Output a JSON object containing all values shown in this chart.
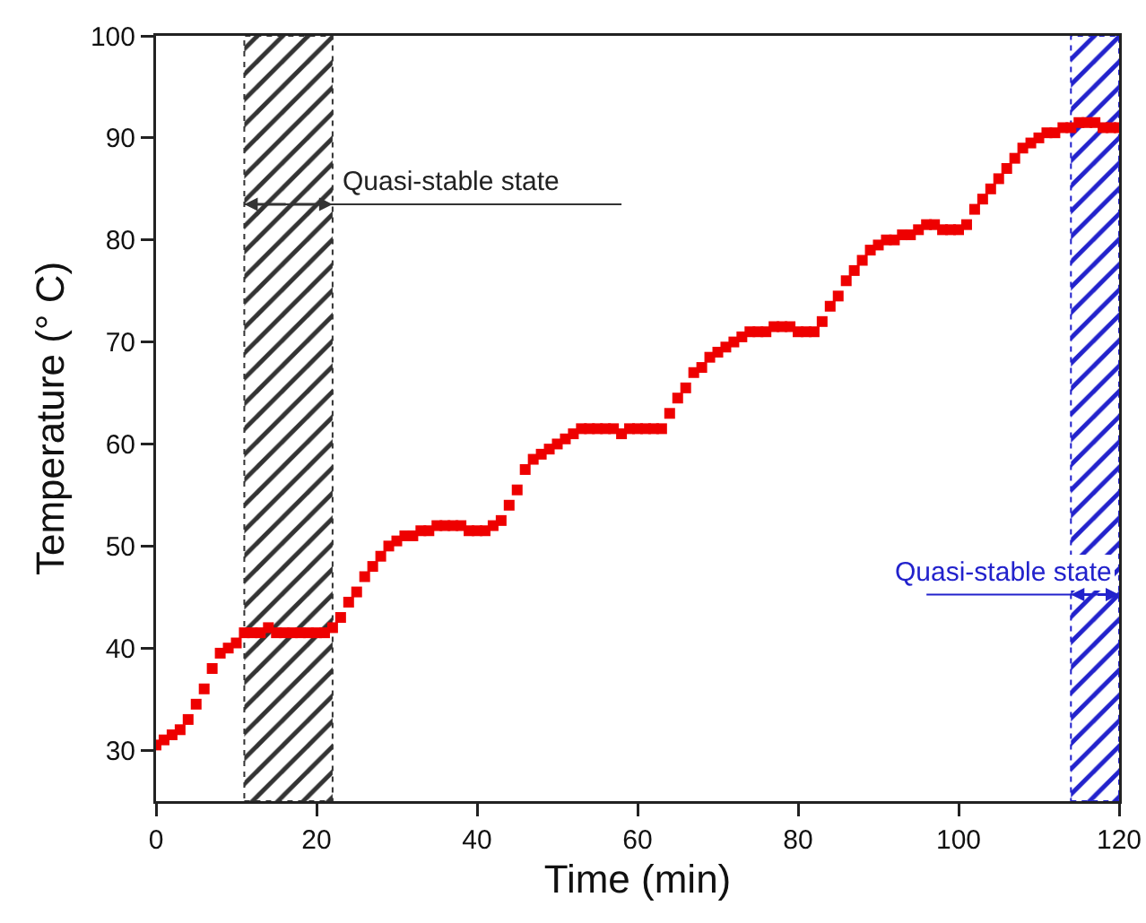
{
  "chart_data": {
    "type": "scatter",
    "xlabel": "Time (min)",
    "ylabel": "Temperature (° C)",
    "xlim": [
      0,
      120
    ],
    "xticks": [
      0,
      20,
      40,
      60,
      80,
      100,
      120
    ],
    "ylim": [
      25,
      100
    ],
    "yticks": [
      30,
      40,
      50,
      60,
      70,
      80,
      90,
      100
    ],
    "grid": false,
    "marker": "square",
    "x": [
      0,
      1,
      2,
      3,
      4,
      5,
      6,
      7,
      8,
      9,
      10,
      11,
      12,
      13,
      14,
      15,
      16,
      17,
      18,
      19,
      20,
      21,
      22,
      23,
      24,
      25,
      26,
      27,
      28,
      29,
      30,
      31,
      32,
      33,
      34,
      35,
      36,
      37,
      38,
      39,
      40,
      41,
      42,
      43,
      44,
      45,
      46,
      47,
      48,
      49,
      50,
      51,
      52,
      53,
      54,
      55,
      56,
      57,
      58,
      59,
      60,
      61,
      62,
      63,
      64,
      65,
      66,
      67,
      68,
      69,
      70,
      71,
      72,
      73,
      74,
      75,
      76,
      77,
      78,
      79,
      80,
      81,
      82,
      83,
      84,
      85,
      86,
      87,
      88,
      89,
      90,
      91,
      92,
      93,
      94,
      95,
      96,
      97,
      98,
      99,
      100,
      101,
      102,
      103,
      104,
      105,
      106,
      107,
      108,
      109,
      110,
      111,
      112,
      113,
      114,
      115,
      116,
      117,
      118,
      119,
      120
    ],
    "series": [
      {
        "color": "#ee0000",
        "values": [
          30.5,
          31,
          31.5,
          32,
          33,
          34.5,
          36,
          38,
          39.5,
          40,
          40.5,
          41.5,
          41.5,
          41.5,
          42,
          41.5,
          41.5,
          41.5,
          41.5,
          41.5,
          41.5,
          41.5,
          42,
          43,
          44.5,
          45.5,
          47,
          48,
          49,
          50,
          50.5,
          51,
          51,
          51.5,
          51.5,
          52,
          52,
          52,
          52,
          51.5,
          51.5,
          51.5,
          52,
          52.5,
          54,
          55.5,
          57.5,
          58.5,
          59,
          59.5,
          60,
          60.5,
          61,
          61.5,
          61.5,
          61.5,
          61.5,
          61.5,
          61,
          61.5,
          61.5,
          61.5,
          61.5,
          61.5,
          63,
          64.5,
          65.5,
          67,
          67.5,
          68.5,
          69,
          69.5,
          70,
          70.5,
          71,
          71,
          71,
          71.5,
          71.5,
          71.5,
          71,
          71,
          71,
          72,
          73.5,
          74.5,
          76,
          77,
          78,
          79,
          79.5,
          80,
          80,
          80.5,
          80.5,
          81,
          81.5,
          81.5,
          81,
          81,
          81,
          81.5,
          83,
          84,
          85,
          86,
          87,
          88,
          89,
          89.5,
          90,
          90.5,
          90.5,
          91,
          91,
          91.5,
          91.5,
          91.5,
          91,
          91,
          91
        ]
      }
    ],
    "bands": [
      {
        "axis": "x",
        "from": 11,
        "to": 22,
        "color": "#333333"
      },
      {
        "axis": "x",
        "from": 114,
        "to": 120,
        "color": "#2222cc"
      }
    ],
    "annotations": [
      "Quasi-stable state",
      "Quasi-stable state"
    ]
  }
}
